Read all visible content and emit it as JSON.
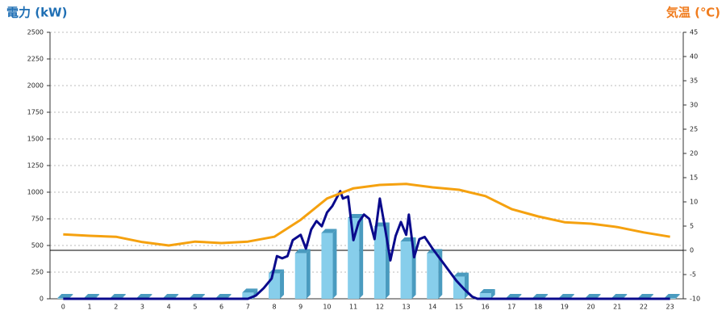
{
  "chart_data": {
    "type": "bar",
    "y_label": "電力 (kW)",
    "y_label_color": "#1f6fb4",
    "y2_label": "気温 (℃)",
    "y2_label_color": "#f07c1e",
    "categories": [
      "0",
      "1",
      "2",
      "3",
      "4",
      "5",
      "6",
      "7",
      "8",
      "9",
      "10",
      "11",
      "12",
      "13",
      "14",
      "15",
      "16",
      "17",
      "18",
      "19",
      "20",
      "21",
      "22",
      "23"
    ],
    "xlim": [
      -0.5,
      23.5
    ],
    "ylim": [
      0,
      2500
    ],
    "yticks": [
      0,
      250,
      500,
      750,
      1000,
      1250,
      1500,
      1750,
      2000,
      2250,
      2500
    ],
    "y2lim": [
      -10,
      45
    ],
    "y2ticks": [
      -10,
      -5,
      0,
      5,
      10,
      15,
      20,
      25,
      30,
      35,
      40,
      45
    ],
    "grid": true,
    "series": [
      {
        "type": "bar",
        "color": "#87ceeb",
        "side_color": "#4a9bbf",
        "values": [
          0,
          0,
          0,
          0,
          0,
          0,
          0,
          50,
          230,
          420,
          610,
          750,
          670,
          530,
          420,
          200,
          45,
          0,
          0,
          0,
          0,
          0,
          0,
          0
        ]
      },
      {
        "type": "line",
        "color": "#0a0a8c",
        "x": [
          0,
          7.0,
          7.3,
          7.6,
          7.9,
          8.1,
          8.3,
          8.5,
          8.7,
          9.0,
          9.2,
          9.4,
          9.6,
          9.8,
          10.0,
          10.2,
          10.5,
          10.6,
          10.8,
          11.0,
          11.2,
          11.4,
          11.6,
          11.8,
          12.0,
          12.2,
          12.4,
          12.6,
          12.8,
          13.0,
          13.1,
          13.3,
          13.5,
          13.7,
          14.0,
          14.3,
          14.6,
          14.9,
          15.2,
          15.5,
          15.7,
          23
        ],
        "values": [
          0,
          0,
          30,
          100,
          190,
          400,
          380,
          400,
          550,
          600,
          470,
          650,
          730,
          680,
          810,
          870,
          1010,
          940,
          960,
          550,
          720,
          790,
          750,
          560,
          940,
          660,
          360,
          590,
          720,
          600,
          790,
          390,
          560,
          580,
          470,
          370,
          270,
          170,
          90,
          20,
          0,
          0
        ]
      },
      {
        "type": "line",
        "axis": "y2",
        "color": "#f5a10f",
        "values": [
          3.3,
          3.0,
          2.8,
          1.7,
          1.0,
          1.8,
          1.5,
          1.8,
          2.8,
          6.3,
          10.7,
          12.8,
          13.5,
          13.7,
          13.0,
          12.5,
          11.2,
          8.5,
          7.0,
          5.8,
          5.5,
          4.8,
          3.7,
          2.8
        ]
      }
    ]
  }
}
